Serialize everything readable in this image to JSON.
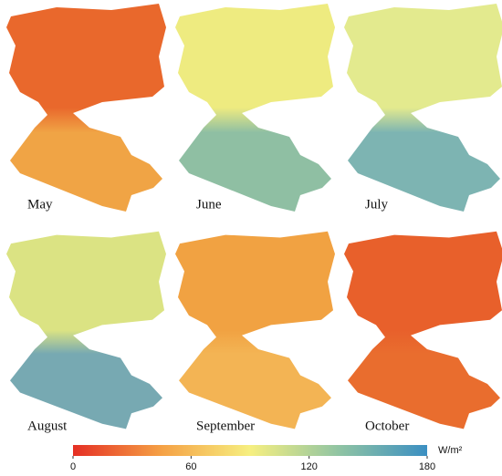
{
  "panels": [
    {
      "label": "May",
      "colors": [
        "#e9682c",
        "#f0a445"
      ]
    },
    {
      "label": "June",
      "colors": [
        "#eeeb80",
        "#8fbfa3"
      ]
    },
    {
      "label": "July",
      "colors": [
        "#e3ea8e",
        "#7db4b2"
      ]
    },
    {
      "label": "August",
      "colors": [
        "#dbe383",
        "#77a9b2"
      ]
    },
    {
      "label": "September",
      "colors": [
        "#f1a242",
        "#f3b454"
      ]
    },
    {
      "label": "October",
      "colors": [
        "#e8602b",
        "#e96d2e"
      ]
    }
  ],
  "colorbar": {
    "unit": "W/m²",
    "lim": [
      0,
      180
    ],
    "ticks": [
      0,
      60,
      120,
      180
    ],
    "colors": [
      "#e52f24",
      "#f5a145",
      "#f6ef80",
      "#90c4a3",
      "#3b8fc2"
    ]
  }
}
